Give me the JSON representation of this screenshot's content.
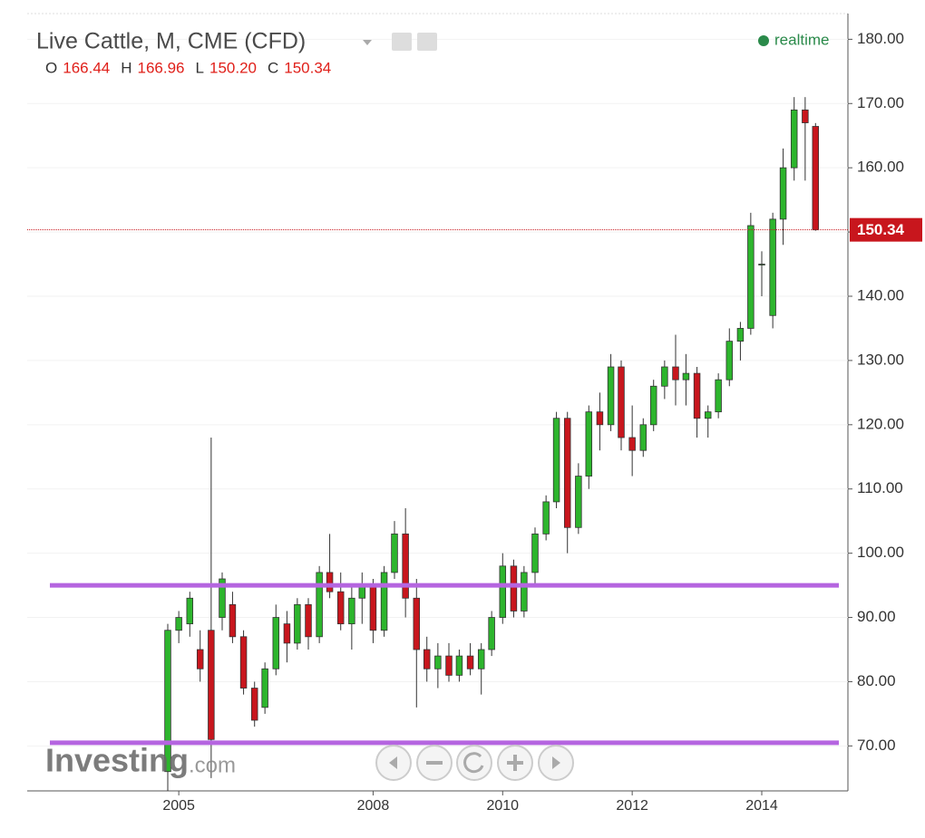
{
  "chart_data": {
    "type": "candlestick",
    "title": "Live Cattle, M, CME (CFD)",
    "status": "realtime",
    "header": [
      {
        "label": "O",
        "value": "166.44"
      },
      {
        "label": "H",
        "value": "166.96"
      },
      {
        "label": "L",
        "value": "150.20"
      },
      {
        "label": "C",
        "value": "150.34"
      }
    ],
    "x": [
      2004.83,
      2005.0,
      2005.17,
      2005.33,
      2005.5,
      2005.67,
      2005.83,
      2006.0,
      2006.17,
      2006.33,
      2006.5,
      2006.67,
      2006.83,
      2007.0,
      2007.17,
      2007.33,
      2007.5,
      2007.67,
      2007.83,
      2008.0,
      2008.17,
      2008.33,
      2008.5,
      2008.67,
      2008.83,
      2009.0,
      2009.17,
      2009.33,
      2009.5,
      2009.67,
      2009.83,
      2010.0,
      2010.17,
      2010.33,
      2010.5,
      2010.67,
      2010.83,
      2011.0,
      2011.17,
      2011.33,
      2011.5,
      2011.67,
      2011.83,
      2012.0,
      2012.17,
      2012.33,
      2012.5,
      2012.67,
      2012.83,
      2013.0,
      2013.17,
      2013.33,
      2013.5,
      2013.67,
      2013.83,
      2014.0,
      2014.17,
      2014.33,
      2014.5,
      2014.67,
      2014.83
    ],
    "open": [
      66,
      88,
      89,
      85,
      88,
      90,
      92,
      87,
      79,
      76,
      82,
      89,
      86,
      92,
      87,
      97,
      94,
      89,
      93,
      95,
      88,
      97,
      103,
      93,
      85,
      82,
      84,
      81,
      84,
      82,
      85,
      90,
      98,
      91,
      97,
      103,
      108,
      121,
      104,
      112,
      122,
      120,
      129,
      118,
      116,
      120,
      126,
      129,
      127,
      128,
      121,
      122,
      127,
      133,
      135,
      145,
      137,
      152,
      160,
      169,
      166.44
    ],
    "high": [
      89,
      91,
      94,
      88,
      118,
      97,
      94,
      88,
      80,
      83,
      92,
      91,
      93,
      93,
      98,
      103,
      97,
      95,
      97,
      96,
      98,
      105,
      107,
      96,
      87,
      86,
      86,
      85,
      86,
      86,
      91,
      100,
      99,
      98,
      104,
      109,
      122,
      122,
      114,
      123,
      125,
      131,
      130,
      123,
      121,
      127,
      130,
      134,
      131,
      129,
      123,
      128,
      135,
      136,
      153,
      147,
      153,
      163,
      171,
      171,
      166.96
    ],
    "low": [
      63,
      86,
      87,
      80,
      65,
      88,
      86,
      78,
      73,
      75,
      81,
      83,
      85,
      85,
      86,
      93,
      88,
      85,
      89,
      86,
      87,
      96,
      90,
      76,
      80,
      79,
      80,
      80,
      81,
      78,
      84,
      89,
      90,
      90,
      95,
      102,
      107,
      100,
      103,
      110,
      116,
      119,
      116,
      112,
      115,
      119,
      124,
      123,
      123,
      118,
      118,
      121,
      126,
      130,
      134,
      140,
      135,
      148,
      158,
      158,
      150.2
    ],
    "close": [
      88,
      90,
      93,
      82,
      71,
      96,
      87,
      79,
      74,
      82,
      90,
      86,
      92,
      87,
      97,
      94,
      89,
      93,
      95,
      88,
      97,
      103,
      93,
      85,
      82,
      84,
      81,
      84,
      82,
      85,
      90,
      98,
      91,
      97,
      103,
      108,
      121,
      104,
      112,
      122,
      120,
      129,
      118,
      116,
      120,
      126,
      129,
      127,
      128,
      121,
      122,
      127,
      133,
      135,
      151,
      145,
      152,
      160,
      169,
      167,
      150.34
    ],
    "up_color": "#2db52d",
    "down_color": "#c8161d",
    "outline_color": "#333333",
    "xlim": [
      2002.66,
      2015.33
    ],
    "xticks": [
      2005,
      2008,
      2010,
      2012,
      2014
    ],
    "ylim": [
      63,
      184
    ],
    "yticks": [
      {
        "value": 70,
        "label": "70.00"
      },
      {
        "value": 80,
        "label": "80.00"
      },
      {
        "value": 90,
        "label": "90.00"
      },
      {
        "value": 100,
        "label": "100.00"
      },
      {
        "value": 110,
        "label": "110.00"
      },
      {
        "value": 120,
        "label": "120.00"
      },
      {
        "value": 130,
        "label": "130.00"
      },
      {
        "value": 140,
        "label": "140.00"
      },
      {
        "value": 150,
        "label": "150.00"
      },
      {
        "value": 160,
        "label": "160.00"
      },
      {
        "value": 170,
        "label": "170.00"
      },
      {
        "value": 180,
        "label": "180.00"
      }
    ],
    "grid": true,
    "hlines": [
      95,
      70.5
    ],
    "hline_color": "#b565e0",
    "watermark": [
      "Investing",
      ".com"
    ]
  }
}
